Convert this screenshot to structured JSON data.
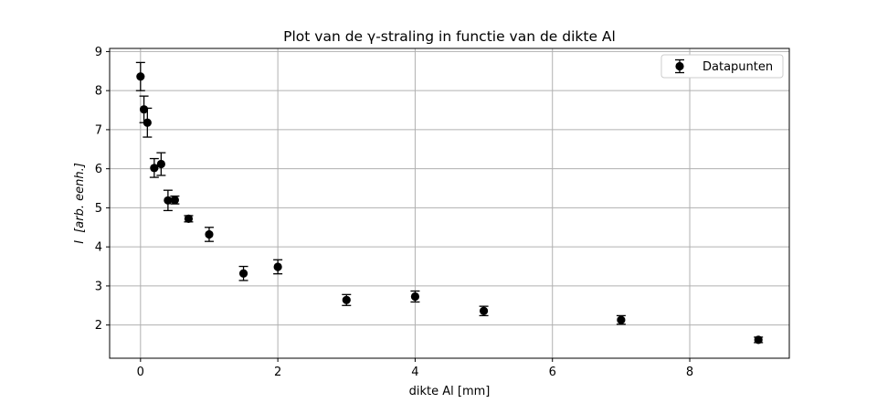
{
  "chart_data": {
    "type": "scatter",
    "title": "Plot van de γ-straling in functie van de dikte Al",
    "xlabel": "dikte Al [mm]",
    "ylabel_symbol": "I",
    "ylabel_unit": "[arb. eenh.]",
    "xlim": [
      -0.45,
      9.45
    ],
    "ylim": [
      1.15,
      9.08
    ],
    "xticks": [
      0,
      2,
      4,
      6,
      8
    ],
    "yticks": [
      2,
      3,
      4,
      5,
      6,
      7,
      8,
      9
    ],
    "xtick_labels": [
      "0",
      "2",
      "4",
      "6",
      "8"
    ],
    "ytick_labels": [
      "2",
      "3",
      "4",
      "5",
      "6",
      "7",
      "8",
      "9"
    ],
    "grid": true,
    "legend": {
      "placement": "top-right",
      "entries": [
        "Datapunten"
      ]
    },
    "series": [
      {
        "name": "Datapunten",
        "color": "#000000",
        "x": [
          0.0,
          0.05,
          0.1,
          0.2,
          0.3,
          0.4,
          0.5,
          0.7,
          1.0,
          1.5,
          2.0,
          3.0,
          4.0,
          5.0,
          7.0,
          9.0
        ],
        "y": [
          8.36,
          7.52,
          7.18,
          6.02,
          6.12,
          5.19,
          5.2,
          4.72,
          4.32,
          3.32,
          3.49,
          2.64,
          2.73,
          2.36,
          2.13,
          1.62
        ],
        "yerr": [
          0.36,
          0.34,
          0.37,
          0.24,
          0.29,
          0.26,
          0.1,
          0.08,
          0.18,
          0.18,
          0.18,
          0.14,
          0.14,
          0.12,
          0.11,
          0.07
        ]
      }
    ]
  }
}
